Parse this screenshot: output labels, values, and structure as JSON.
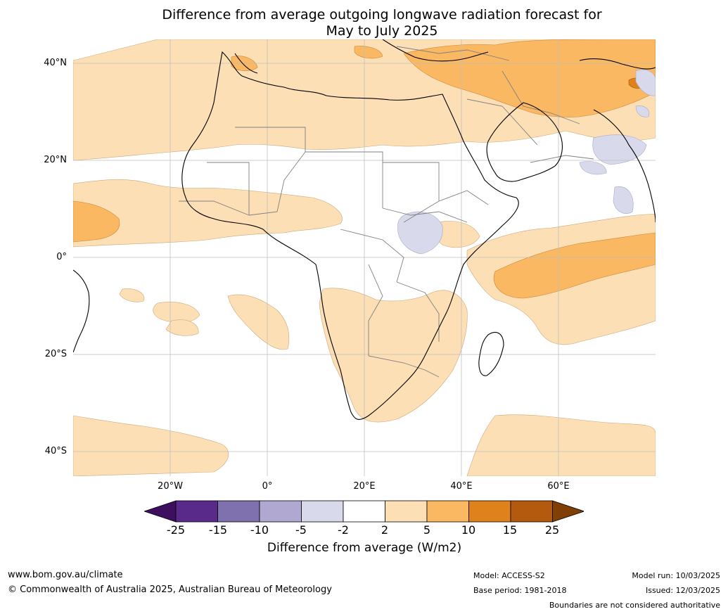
{
  "title_line1": "Difference from average outgoing longwave radiation forecast for",
  "title_line2": "May to July 2025",
  "lat_labels": [
    "40°N",
    "20°N",
    "0°",
    "20°S",
    "40°S"
  ],
  "lon_labels": [
    "20°W",
    "0°",
    "20°E",
    "40°E",
    "60°E"
  ],
  "colorbar": {
    "ticks": [
      "-25",
      "-15",
      "-10",
      "-5",
      "-2",
      "2",
      "5",
      "10",
      "15",
      "25"
    ],
    "colors": [
      "#3d0f5e",
      "#5a2a8a",
      "#7f70ae",
      "#b1a8d1",
      "#d9d9ec",
      "#ffffff",
      "#fddfb5",
      "#fab862",
      "#e0821b",
      "#b45a0e",
      "#7f3f05"
    ],
    "title": "Difference from average (W/m2)"
  },
  "footer": {
    "url": "www.bom.gov.au/climate",
    "copyright": "© Commonwealth of Australia 2025, Australian Bureau of Meteorology",
    "model": "Model: ACCESS-S2",
    "base_period": "Base period: 1981-2018",
    "model_run": "Model run: 10/03/2025",
    "issued": "Issued: 12/03/2025",
    "disclaimer": "Boundaries are not considered authoritative"
  }
}
